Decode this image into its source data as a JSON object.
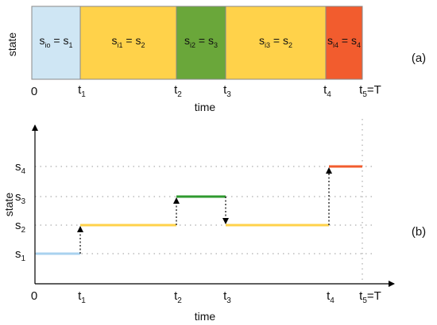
{
  "panel_a": {
    "label": "(a)",
    "ylabel": "state",
    "xlabel": "time",
    "origin": "0",
    "ticks": [
      {
        "base": "t",
        "sub": "1"
      },
      {
        "base": "t",
        "sub": "2"
      },
      {
        "base": "t",
        "sub": "3"
      },
      {
        "base": "t",
        "sub": "4"
      },
      {
        "base": "t",
        "sub": "5",
        "suffix": "=T"
      }
    ],
    "segments": [
      {
        "pre": "s",
        "pre_sub": "io",
        "mid": " = s",
        "post_sub": "1",
        "color": "#cfe6f4"
      },
      {
        "pre": "s",
        "pre_sub": "i1",
        "mid": " = s",
        "post_sub": "2",
        "color": "#ffd24a"
      },
      {
        "pre": "s",
        "pre_sub": "i2",
        "mid": " = s",
        "post_sub": "3",
        "color": "#6aa73a"
      },
      {
        "pre": "s",
        "pre_sub": "i3",
        "mid": " = s",
        "post_sub": "2",
        "color": "#ffd24a"
      },
      {
        "pre": "s",
        "pre_sub": "i4",
        "mid": " = s",
        "post_sub": "4",
        "color": "#f25c2e"
      }
    ]
  },
  "panel_b": {
    "label": "(b)",
    "ylabel": "state",
    "xlabel": "time",
    "origin": "0",
    "yticks": [
      {
        "base": "s",
        "sub": "1"
      },
      {
        "base": "s",
        "sub": "2"
      },
      {
        "base": "s",
        "sub": "3"
      },
      {
        "base": "s",
        "sub": "4"
      }
    ],
    "xticks": [
      {
        "base": "t",
        "sub": "1"
      },
      {
        "base": "t",
        "sub": "2"
      },
      {
        "base": "t",
        "sub": "3"
      },
      {
        "base": "t",
        "sub": "4"
      },
      {
        "base": "t",
        "sub": "5",
        "suffix": "=T"
      }
    ],
    "steps": [
      {
        "from": 0,
        "to": 1,
        "state": 1,
        "color": "#a9d2ef"
      },
      {
        "from": 1,
        "to": 2,
        "state": 2,
        "color": "#ffd24a"
      },
      {
        "from": 2,
        "to": 3,
        "state": 3,
        "color": "#2f9a2f"
      },
      {
        "from": 3,
        "to": 4,
        "state": 2,
        "color": "#ffd24a"
      },
      {
        "from": 4,
        "to": 5,
        "state": 4,
        "color": "#f25c2e"
      }
    ]
  }
}
